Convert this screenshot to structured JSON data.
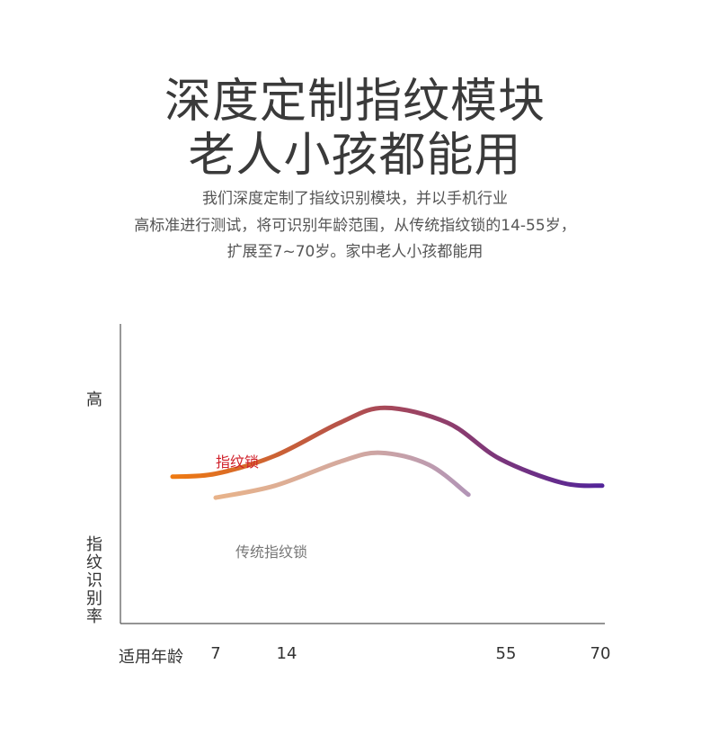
{
  "header": {
    "title_line1": "深度定制指纹模块",
    "title_line2": "老人小孩都能用",
    "desc_line1": "我们深度定制了指纹识别模块，并以手机行业",
    "desc_line2": "高标准进行测试，将可识别年龄范围，从传统指纹锁的14-55岁，",
    "desc_line3": "扩展至7~70岁。家中老人小孩都能用"
  },
  "chart_data": {
    "type": "line",
    "title": "",
    "xlabel": "适用年龄",
    "ylabel": "指纹识别率",
    "y_high_label": "高",
    "x_ticks": [
      "7",
      "14",
      "55",
      "70"
    ],
    "grid": false,
    "series": [
      {
        "name": "指纹锁",
        "label_color": "#d0202a",
        "gradient": [
          "#ef7a12",
          "#a6485a",
          "#52249a"
        ],
        "x": [
          3,
          7,
          14,
          25,
          35,
          45,
          55,
          64,
          70
        ],
        "y": [
          0.49,
          0.5,
          0.56,
          0.67,
          0.72,
          0.67,
          0.55,
          0.47,
          0.46
        ]
      },
      {
        "name": "传统指纹锁",
        "label_color": "#777777",
        "gradient": [
          "#e8b38a",
          "#d2a8a0",
          "#a98fbc"
        ],
        "x": [
          7,
          14,
          25,
          34,
          42,
          49
        ],
        "y": [
          0.42,
          0.46,
          0.54,
          0.57,
          0.53,
          0.43
        ]
      }
    ]
  }
}
